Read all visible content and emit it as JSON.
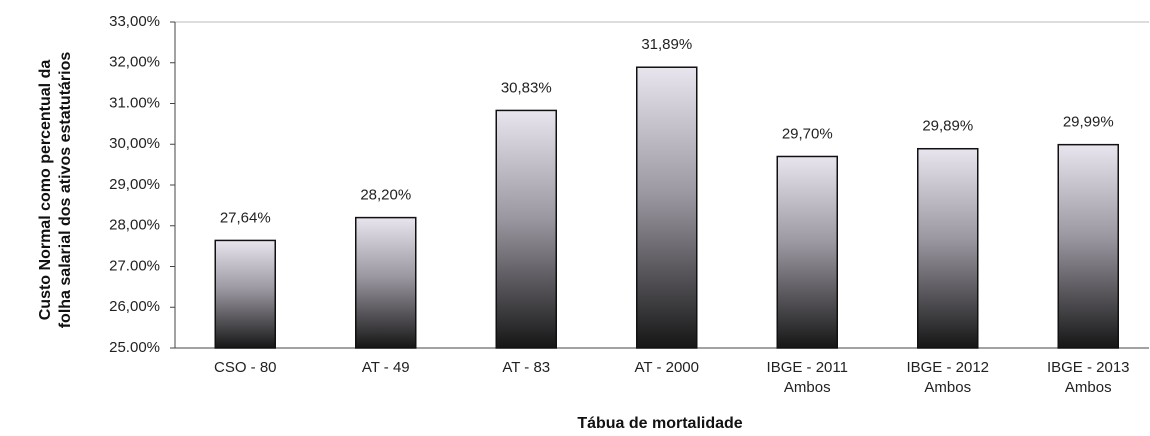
{
  "chart_data": {
    "type": "bar",
    "x_label": "Tábua de mortalidade",
    "y_label": [
      "Custo Normal como percentual da",
      "folha salarial dos ativos estatutários"
    ],
    "categories": [
      "CSO - 80",
      "AT - 49",
      "AT - 83",
      "AT - 2000",
      "IBGE - 2011\nAmbos",
      "IBGE - 2012\nAmbos",
      "IBGE - 2013\nAmbos"
    ],
    "values": [
      27.64,
      28.2,
      30.83,
      31.89,
      29.7,
      29.89,
      29.99
    ],
    "value_labels": [
      "27,64%",
      "28,20%",
      "30,83%",
      "31,89%",
      "29,70%",
      "29,89%",
      "29,99%"
    ],
    "ylim": [
      25,
      33
    ],
    "yticks": [
      {
        "value": 25,
        "label": "25.00%"
      },
      {
        "value": 26,
        "label": "26,00%"
      },
      {
        "value": 27,
        "label": "27.00%"
      },
      {
        "value": 28,
        "label": "28,00%"
      },
      {
        "value": 29,
        "label": "29,00%"
      },
      {
        "value": 30,
        "label": "30,00%"
      },
      {
        "value": 31,
        "label": "31.00%"
      },
      {
        "value": 32,
        "label": "32,00%"
      },
      {
        "value": 33,
        "label": "33,00%"
      }
    ],
    "color": [
      "#e9e5ef",
      "#161616"
    ]
  }
}
